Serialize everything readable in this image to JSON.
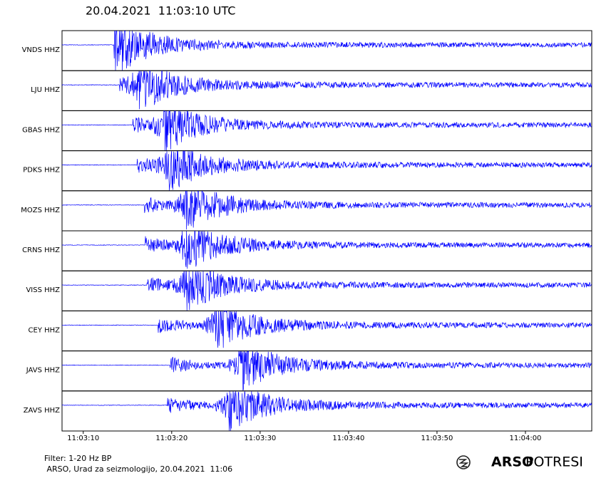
{
  "chart_data": {
    "type": "seismogram",
    "title": "20.04.2021  11:03:10 UTC",
    "xlim": [
      7.6,
      67.5
    ],
    "xticks": [
      {
        "value": 10,
        "label": "11:03:10"
      },
      {
        "value": 20,
        "label": "11:03:20"
      },
      {
        "value": 30,
        "label": "11:03:30"
      },
      {
        "value": 40,
        "label": "11:03:40"
      },
      {
        "value": 50,
        "label": "11:03:50"
      },
      {
        "value": 60,
        "label": "11:04:00"
      }
    ],
    "color": "#0000ff",
    "series": [
      {
        "name": "VNDS HHZ",
        "onset": 13.5,
        "peak": 13.5
      },
      {
        "name": "LJU HHZ",
        "onset": 14.1,
        "peak": 16.3
      },
      {
        "name": "GBAS HHZ",
        "onset": 15.6,
        "peak": 19.1
      },
      {
        "name": "PDKS HHZ",
        "onset": 16.1,
        "peak": 19.7
      },
      {
        "name": "MOZS HHZ",
        "onset": 16.9,
        "peak": 21.6
      },
      {
        "name": "CRNS HHZ",
        "onset": 17.0,
        "peak": 21.5
      },
      {
        "name": "VISS HHZ",
        "onset": 17.2,
        "peak": 21.7
      },
      {
        "name": "CEY HHZ",
        "onset": 18.4,
        "peak": 25.0
      },
      {
        "name": "JAVS HHZ",
        "onset": 19.8,
        "peak": 27.8
      },
      {
        "name": "ZAVS HHZ",
        "onset": 19.5,
        "peak": 26.5
      }
    ]
  },
  "footer": {
    "filter": "Filter: 1-20 Hz BP",
    "credit": " ARSO, Urad za seizmologijo, 20.04.2021  11:06"
  },
  "logo": {
    "bold": "ARSO",
    "light": "POTRESI"
  }
}
